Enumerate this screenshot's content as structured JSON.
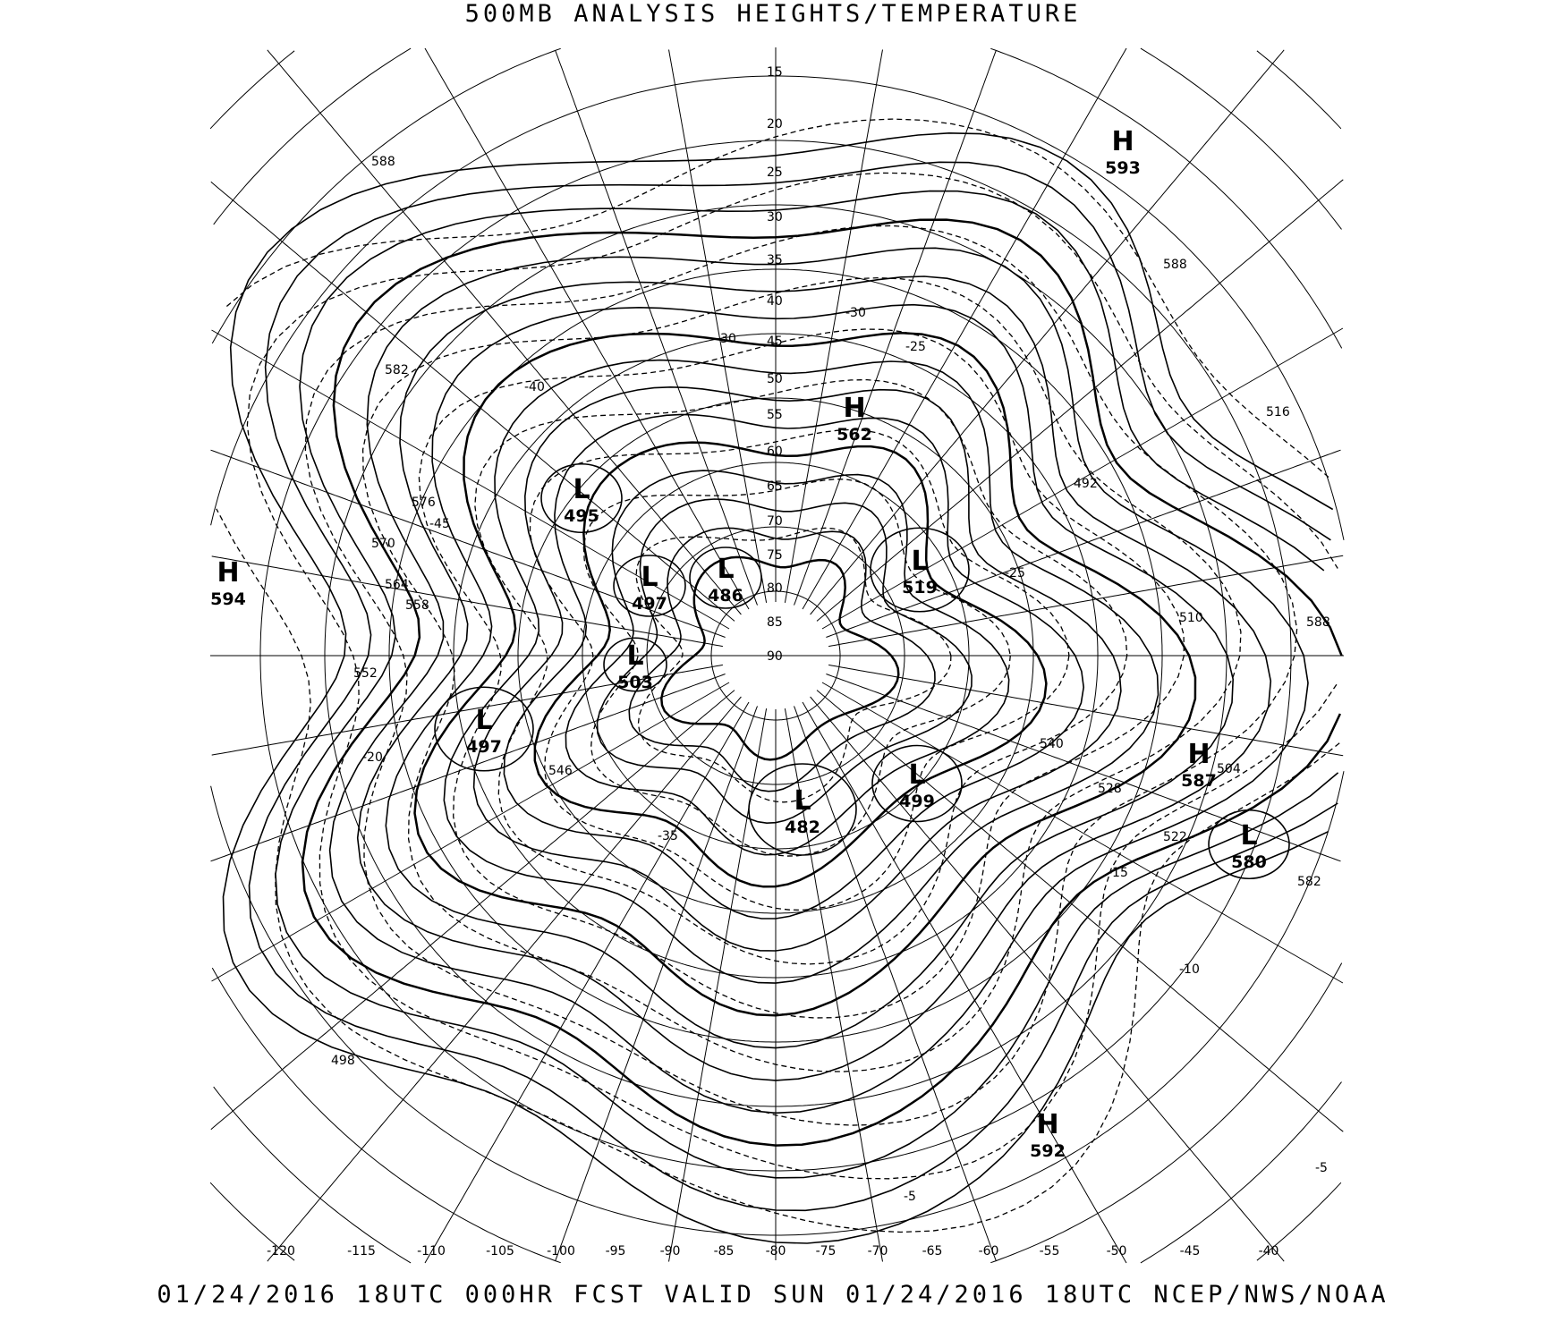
{
  "title": "500MB ANALYSIS  HEIGHTS/TEMPERATURE",
  "footer": "01/24/2016 18UTC 000HR FCST VALID SUN 01/24/2016 18UTC  NCEP/NWS/NOAA",
  "map": {
    "projection": "polar-stereographic",
    "line_color": "#000000",
    "background": "#ffffff",
    "longitude_labels": [
      "-120",
      "-115",
      "-110",
      "-105",
      "-100",
      "-95",
      "-90",
      "-85",
      "-80",
      "-75",
      "-70",
      "-65",
      "-60",
      "-55",
      "-50",
      "-45",
      "-40"
    ],
    "latitude_labels": [
      "15",
      "20",
      "25",
      "30",
      "35",
      "40",
      "45",
      "50",
      "55",
      "60",
      "65",
      "70",
      "75",
      "80",
      "85",
      "90"
    ],
    "pressure_centers": [
      {
        "type": "H",
        "value": "594"
      },
      {
        "type": "H",
        "value": "593"
      },
      {
        "type": "H",
        "value": "562"
      },
      {
        "type": "L",
        "value": "495"
      },
      {
        "type": "L",
        "value": "497"
      },
      {
        "type": "L",
        "value": "486"
      },
      {
        "type": "L",
        "value": "519"
      },
      {
        "type": "L",
        "value": "503"
      },
      {
        "type": "L",
        "value": "497"
      },
      {
        "type": "L",
        "value": "499"
      },
      {
        "type": "L",
        "value": "482"
      },
      {
        "type": "H",
        "value": "587"
      },
      {
        "type": "L",
        "value": "580"
      },
      {
        "type": "H",
        "value": "592"
      }
    ],
    "height_labels": [
      "588",
      "582",
      "576",
      "570",
      "564",
      "558",
      "552",
      "546",
      "540",
      "528",
      "522",
      "516",
      "510",
      "504",
      "498",
      "492",
      "588",
      "582",
      "588"
    ],
    "temperature_labels": [
      "-5",
      "-10",
      "-15",
      "-20",
      "-25",
      "-30",
      "-35",
      "-40",
      "-45",
      "-30",
      "-25",
      "-5"
    ]
  }
}
